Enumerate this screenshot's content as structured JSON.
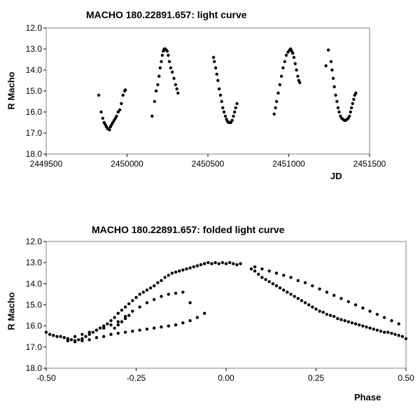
{
  "chart_data": [
    {
      "type": "scatter",
      "title": "MACHO 180.22891.657: light curve",
      "xlabel": "JD",
      "ylabel": "R Macho",
      "xlim": [
        2449500,
        2451500
      ],
      "ylim": [
        12.0,
        18.0
      ],
      "y_inverted": true,
      "xticks": [
        "2449500",
        "2450000",
        "2450500",
        "2451000",
        "2451500"
      ],
      "yticks": [
        "12.0",
        "13.0",
        "14.0",
        "15.0",
        "16.0",
        "17.0",
        "18.0"
      ],
      "grid": false,
      "legend": "none",
      "marker_color": "#000000",
      "series": [
        {
          "x": [
            2449825,
            2449840,
            2449850,
            2449858,
            2449865,
            2449872,
            2449880,
            2449886,
            2449892,
            2449898,
            2449905,
            2449912,
            2449920,
            2449928,
            2449935,
            2449945,
            2449955,
            2449965,
            2449975,
            2449985,
            2449990,
            2450155,
            2450170,
            2450180,
            2450190,
            2450198,
            2450205,
            2450212,
            2450218,
            2450224,
            2450230,
            2450236,
            2450242,
            2450248,
            2450255,
            2450262,
            2450270,
            2450280,
            2450290,
            2450300,
            2450308,
            2450315,
            2450535,
            2450540,
            2450548,
            2450555,
            2450562,
            2450570,
            2450578,
            2450585,
            2450592,
            2450600,
            2450608,
            2450615,
            2450622,
            2450628,
            2450635,
            2450642,
            2450650,
            2450658,
            2450665,
            2450672,
            2450680,
            2450910,
            2450918,
            2450925,
            2450935,
            2450945,
            2450955,
            2450965,
            2450975,
            2450985,
            2450995,
            2451005,
            2451012,
            2451018,
            2451025,
            2451032,
            2451040,
            2451048,
            2451056,
            2451062,
            2451068,
            2451230,
            2451245,
            2451262,
            2451268,
            2451275,
            2451282,
            2451290,
            2451298,
            2451305,
            2451312,
            2451320,
            2451328,
            2451336,
            2451344,
            2451352,
            2451360,
            2451368,
            2451375,
            2451382,
            2451388,
            2451395,
            2451402,
            2451408,
            2451415
          ],
          "y": [
            15.2,
            16.0,
            16.3,
            16.5,
            16.6,
            16.7,
            16.8,
            16.8,
            16.85,
            16.7,
            16.6,
            16.5,
            16.4,
            16.3,
            16.2,
            16.0,
            15.9,
            15.6,
            15.2,
            15.0,
            14.95,
            16.2,
            15.5,
            15.0,
            14.7,
            14.3,
            13.9,
            13.6,
            13.3,
            13.1,
            13.0,
            13.0,
            13.05,
            13.1,
            13.3,
            13.6,
            13.9,
            14.1,
            14.4,
            14.7,
            14.9,
            15.1,
            13.4,
            13.6,
            13.9,
            14.2,
            14.5,
            14.9,
            15.2,
            15.5,
            15.8,
            16.0,
            16.2,
            16.35,
            16.45,
            16.5,
            16.5,
            16.5,
            16.4,
            16.2,
            16.0,
            15.8,
            15.6,
            16.1,
            15.8,
            15.5,
            15.1,
            14.7,
            14.3,
            13.9,
            13.6,
            13.3,
            13.15,
            13.05,
            13.0,
            13.1,
            13.2,
            13.4,
            13.7,
            14.0,
            14.3,
            14.5,
            14.6,
            13.8,
            13.05,
            13.6,
            14.0,
            14.4,
            14.8,
            15.2,
            15.5,
            15.8,
            16.0,
            16.2,
            16.3,
            16.35,
            16.4,
            16.4,
            16.35,
            16.3,
            16.2,
            16.0,
            15.8,
            15.6,
            15.4,
            15.2,
            15.1
          ]
        }
      ]
    },
    {
      "type": "scatter",
      "title": "MACHO 180.22891.657: folded light curve",
      "xlabel": "Phase",
      "ylabel": "R Macho",
      "xlim": [
        -0.5,
        0.5
      ],
      "ylim": [
        12.0,
        18.0
      ],
      "y_inverted": true,
      "xticks": [
        "-0.50",
        "-0.25",
        "0.00",
        "0.25",
        "0.50"
      ],
      "yticks": [
        "12.0",
        "13.0",
        "14.0",
        "15.0",
        "16.0",
        "17.0",
        "18.0"
      ],
      "grid": false,
      "legend": "none",
      "marker_color": "#000000",
      "series": [
        {
          "x": [
            -0.5,
            -0.49,
            -0.48,
            -0.47,
            -0.46,
            -0.45,
            -0.44,
            -0.43,
            -0.42,
            -0.41,
            -0.4,
            -0.39,
            -0.38,
            -0.37,
            -0.36,
            -0.35,
            -0.34,
            -0.33,
            -0.32,
            -0.31,
            -0.3,
            -0.29,
            -0.28,
            -0.27,
            -0.26,
            -0.25,
            -0.24,
            -0.23,
            -0.22,
            -0.21,
            -0.2,
            -0.19,
            -0.18,
            -0.17,
            -0.16,
            -0.15,
            -0.14,
            -0.13,
            -0.12,
            -0.11,
            -0.1,
            -0.09,
            -0.08,
            -0.07,
            -0.06,
            -0.05,
            -0.04,
            -0.03,
            -0.02,
            -0.01,
            0.0,
            0.01,
            0.02,
            0.03,
            0.04,
            -0.44,
            -0.42,
            -0.4,
            -0.38,
            -0.36,
            -0.34,
            -0.32,
            -0.3,
            -0.28,
            -0.26,
            -0.24,
            -0.22,
            -0.2,
            -0.18,
            -0.16,
            -0.14,
            -0.12,
            -0.1,
            -0.08,
            -0.06,
            -0.42,
            -0.4,
            -0.38,
            -0.36,
            -0.34,
            -0.32,
            -0.3,
            -0.28,
            -0.26,
            -0.24,
            -0.22,
            -0.2,
            -0.18,
            -0.16,
            -0.14,
            -0.12,
            -0.1,
            -0.31,
            -0.3,
            -0.29,
            -0.28,
            -0.27,
            0.07,
            0.08,
            0.09,
            0.1,
            0.11,
            0.12,
            0.13,
            0.14,
            0.15,
            0.16,
            0.17,
            0.18,
            0.19,
            0.2,
            0.21,
            0.22,
            0.23,
            0.24,
            0.25,
            0.26,
            0.27,
            0.28,
            0.29,
            0.3,
            0.31,
            0.32,
            0.33,
            0.34,
            0.35,
            0.36,
            0.37,
            0.38,
            0.39,
            0.4,
            0.41,
            0.42,
            0.43,
            0.44,
            0.45,
            0.46,
            0.47,
            0.48,
            0.49,
            0.5,
            0.08,
            0.1,
            0.12,
            0.14,
            0.16,
            0.18,
            0.2,
            0.22,
            0.24,
            0.26,
            0.28,
            0.3,
            0.32,
            0.34,
            0.36,
            0.38,
            0.4,
            0.42,
            0.44,
            0.46,
            0.48
          ],
          "y": [
            16.3,
            16.4,
            16.45,
            16.5,
            16.5,
            16.55,
            16.6,
            16.65,
            16.7,
            16.65,
            16.6,
            16.5,
            16.4,
            16.3,
            16.2,
            16.1,
            16.0,
            15.9,
            15.75,
            15.6,
            15.4,
            15.25,
            15.1,
            14.95,
            14.8,
            14.65,
            14.5,
            14.4,
            14.3,
            14.2,
            14.1,
            13.95,
            13.85,
            13.7,
            13.6,
            13.5,
            13.45,
            13.4,
            13.35,
            13.3,
            13.25,
            13.2,
            13.15,
            13.1,
            13.05,
            13.0,
            13.05,
            13.0,
            13.05,
            13.0,
            13.05,
            13.0,
            13.05,
            13.1,
            13.05,
            16.7,
            16.75,
            16.7,
            16.65,
            16.55,
            16.5,
            16.4,
            16.35,
            16.3,
            16.25,
            16.2,
            16.15,
            16.1,
            16.05,
            16.0,
            15.95,
            15.85,
            15.75,
            15.6,
            15.4,
            16.5,
            16.4,
            16.3,
            16.2,
            16.1,
            15.95,
            15.8,
            15.55,
            15.3,
            15.1,
            14.9,
            14.75,
            14.6,
            14.5,
            14.45,
            14.4,
            14.9,
            16.1,
            15.95,
            15.8,
            15.65,
            15.5,
            13.3,
            13.4,
            13.55,
            13.7,
            13.8,
            13.9,
            14.0,
            14.1,
            14.2,
            14.3,
            14.4,
            14.5,
            14.6,
            14.7,
            14.8,
            14.9,
            15.0,
            15.1,
            15.2,
            15.3,
            15.35,
            15.45,
            15.5,
            15.55,
            15.65,
            15.7,
            15.75,
            15.8,
            15.85,
            15.9,
            15.95,
            16.0,
            16.05,
            16.1,
            16.15,
            16.2,
            16.25,
            16.3,
            16.3,
            16.35,
            16.4,
            16.45,
            16.5,
            16.6,
            13.2,
            13.3,
            13.4,
            13.5,
            13.6,
            13.7,
            13.85,
            13.95,
            14.1,
            14.25,
            14.4,
            14.55,
            14.7,
            14.85,
            15.0,
            15.15,
            15.3,
            15.45,
            15.6,
            15.75,
            15.9
          ]
        }
      ]
    }
  ]
}
